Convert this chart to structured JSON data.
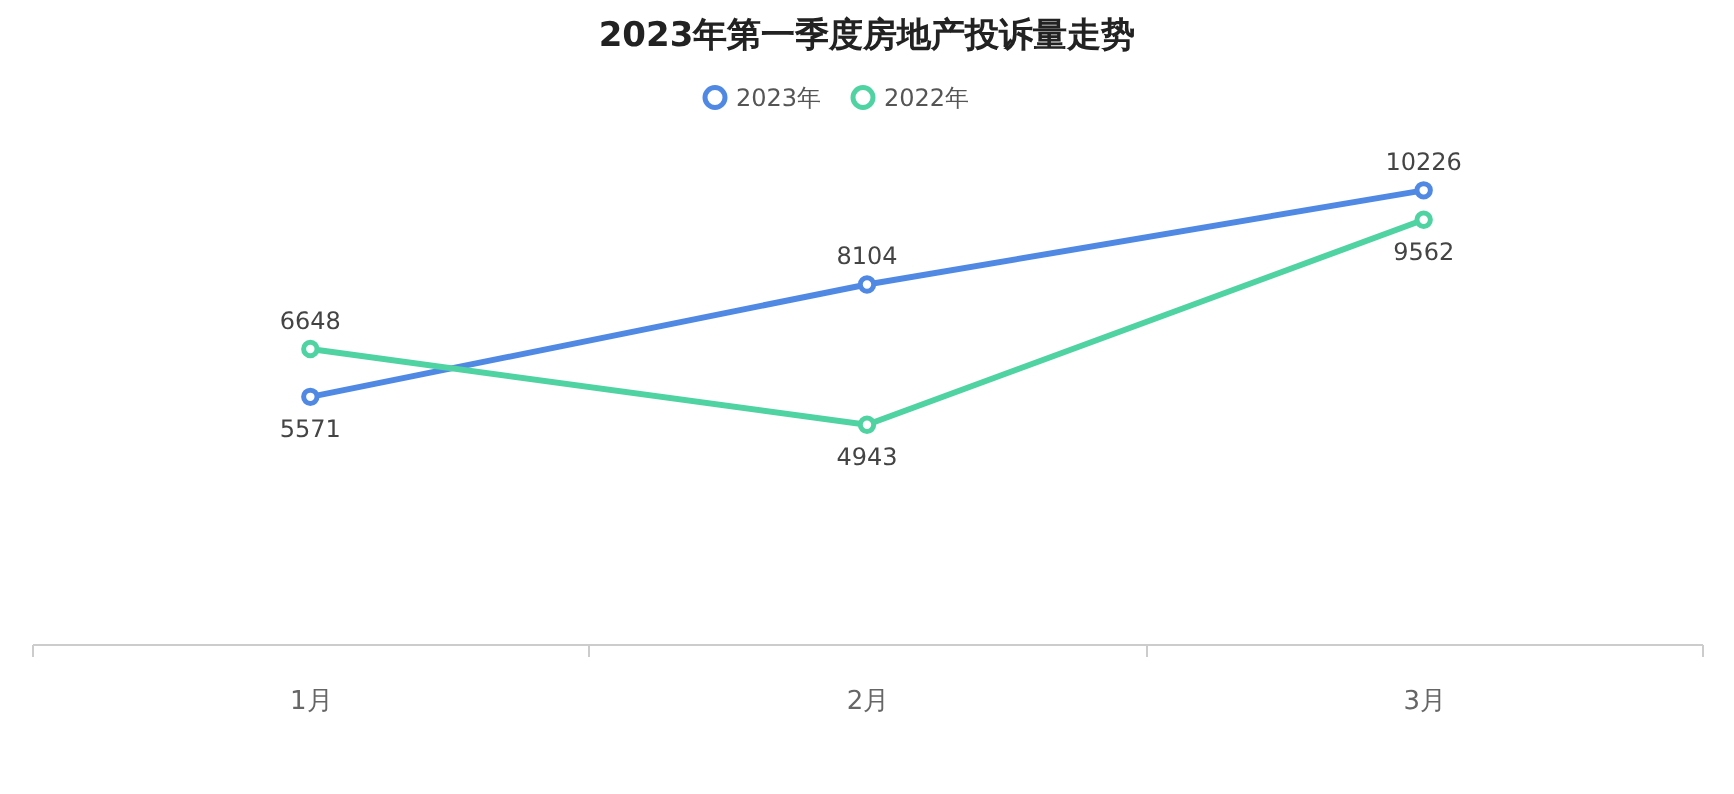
{
  "chart_data": {
    "type": "line",
    "title": "2023年第一季度房地产投诉量走势",
    "categories": [
      "1月",
      "2月",
      "3月"
    ],
    "series": [
      {
        "name": "2023年",
        "color": "#5089e3",
        "values": [
          5571,
          8104,
          10226
        ]
      },
      {
        "name": "2022年",
        "color": "#4fd3a2",
        "values": [
          6648,
          4943,
          9562
        ]
      }
    ],
    "data_labels": true,
    "legend": "top",
    "marker": "circle",
    "line_style": "solid",
    "grid": false,
    "tick_labels": "x"
  }
}
